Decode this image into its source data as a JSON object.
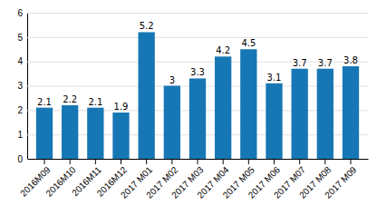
{
  "chart_data": {
    "type": "bar",
    "categories": [
      "2016M09",
      "2016M10",
      "2016M11",
      "2016M12",
      "2017 M01",
      "2017 M02",
      "2017 M03",
      "2017 M04",
      "2017 M05",
      "2017 M06",
      "2017 M07",
      "2017 M08",
      "2017 M09"
    ],
    "values": [
      2.1,
      2.2,
      2.1,
      1.9,
      5.2,
      3.0,
      3.3,
      4.2,
      4.5,
      3.1,
      3.7,
      3.7,
      3.8
    ],
    "color": "#1777b4",
    "ylim": [
      0,
      6
    ],
    "yticks": [
      0,
      1,
      2,
      3,
      4,
      5,
      6
    ],
    "grid": true,
    "data_labels": true
  }
}
